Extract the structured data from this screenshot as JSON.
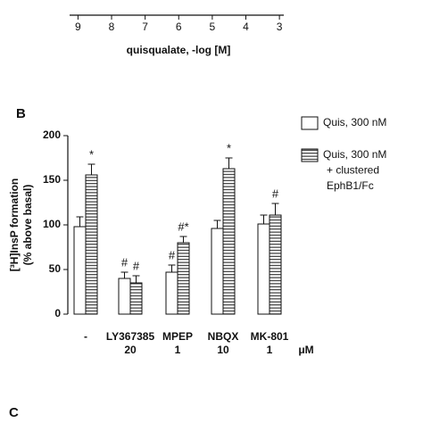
{
  "panel_labels": [
    "B",
    "C"
  ],
  "chart_data": [
    {
      "type": "axis",
      "xlabel": "quisqualate, -log [M]",
      "xlim": [
        9.25,
        2.87
      ],
      "xticks": [
        9,
        8,
        7,
        6,
        5,
        4,
        3
      ]
    },
    {
      "type": "bar",
      "ylabel": [
        "[³H]InsP formation",
        "(% above basal)"
      ],
      "categories": [
        "-",
        "LY367385",
        "MPEP",
        "NBQX",
        "MK-801"
      ],
      "doses": [
        null,
        "20",
        "1",
        "10",
        "1"
      ],
      "dose_unit": "μM",
      "ylim": [
        0,
        200
      ],
      "yticks": [
        0,
        50,
        100,
        150,
        200
      ],
      "series": [
        {
          "name": "Quis, 300 nM",
          "color": "#ffffff",
          "pattern": "none",
          "values": [
            98,
            40,
            47,
            96,
            101
          ],
          "errors": [
            11,
            7,
            8,
            9,
            10
          ],
          "annotations": [
            null,
            "#",
            "#",
            null,
            null
          ]
        },
        {
          "name": "Quis, 300 nM\n+ clustered\nEphB1/Fc",
          "color": "#ffffff",
          "pattern": "horizontal-stripes",
          "values": [
            156,
            35,
            80,
            163,
            111
          ],
          "errors": [
            12,
            8,
            7,
            12,
            13
          ],
          "annotations": [
            "*",
            "#",
            "#*",
            "*",
            "#"
          ]
        }
      ],
      "legend": "upper right"
    }
  ]
}
